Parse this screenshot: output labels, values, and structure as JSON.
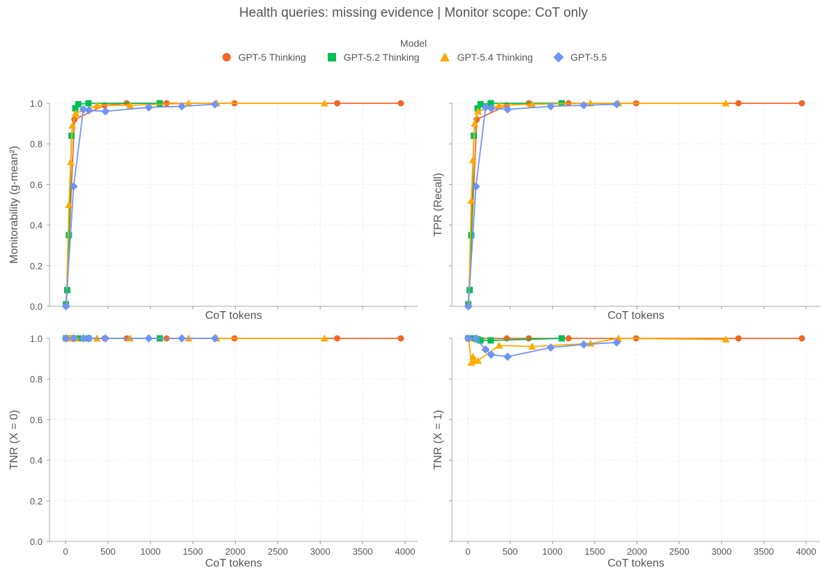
{
  "title": "Health queries: missing evidence | Monitor scope: CoT only",
  "legend_title": "Model",
  "chart_data": {
    "type": "line",
    "xlabel": "CoT tokens",
    "xlim": [
      -200,
      4150
    ],
    "ylim": [
      0,
      1.0
    ],
    "xticks": [
      0,
      500,
      1000,
      1500,
      2000,
      2500,
      3000,
      3500,
      4000
    ],
    "yticks": [
      "0.0",
      "0.2",
      "0.4",
      "0.6",
      "0.8",
      "1.0"
    ],
    "grid": true,
    "legend_placement": "top-center",
    "panels": [
      {
        "ylabel": "Monitorability (g-mean²)",
        "metric": "monit"
      },
      {
        "ylabel": "TPR (Recall)",
        "metric": "tpr"
      },
      {
        "ylabel": "TNR (X = 0)",
        "metric": "tnr0"
      },
      {
        "ylabel": "TNR (X = 1)",
        "metric": "tnr1"
      }
    ],
    "series": [
      {
        "name": "GPT-5 Thinking",
        "color": "#F26522",
        "marker": "circle",
        "x": [
          5,
          105,
          460,
          720,
          1190,
          1990,
          3200,
          3950
        ],
        "monit": [
          0.0,
          0.92,
          0.99,
          1.0,
          1.0,
          1.0,
          1.0,
          1.0
        ],
        "tpr": [
          0.0,
          0.92,
          0.99,
          1.0,
          1.0,
          1.0,
          1.0,
          1.0
        ],
        "tnr0": [
          1.0,
          1.0,
          1.0,
          1.0,
          1.0,
          1.0,
          1.0,
          1.0
        ],
        "tnr1": [
          1.0,
          1.0,
          1.0,
          1.0,
          1.0,
          1.0,
          1.0,
          1.0
        ]
      },
      {
        "name": "GPT-5.2 Thinking",
        "color": "#00BF55",
        "marker": "square",
        "x": [
          5,
          20,
          40,
          70,
          115,
          150,
          270,
          1110
        ],
        "monit": [
          0.01,
          0.08,
          0.35,
          0.84,
          0.975,
          0.995,
          1.0,
          1.0
        ],
        "tpr": [
          0.01,
          0.08,
          0.35,
          0.84,
          0.975,
          0.995,
          1.0,
          1.0
        ],
        "tnr0": [
          1.0,
          1.0,
          1.0,
          1.0,
          1.0,
          1.0,
          1.0,
          1.0
        ],
        "tnr1": [
          1.0,
          1.0,
          1.0,
          1.0,
          0.995,
          0.99,
          0.99,
          1.0
        ]
      },
      {
        "name": "GPT-5.4 Thinking",
        "color": "#FFAA00",
        "marker": "triangle",
        "x": [
          10,
          40,
          60,
          80,
          120,
          370,
          760,
          1450,
          1780,
          3050
        ],
        "monit": [
          0.01,
          0.5,
          0.71,
          0.89,
          0.95,
          0.99,
          0.99,
          1.0,
          1.0,
          1.0
        ],
        "tpr": [
          0.01,
          0.52,
          0.72,
          0.9,
          0.96,
          0.99,
          0.995,
          1.0,
          1.0,
          1.0
        ],
        "tnr0": [
          1.0,
          1.0,
          1.0,
          1.0,
          1.0,
          1.0,
          1.0,
          1.0,
          1.0,
          1.0
        ],
        "tnr1": [
          1.0,
          0.88,
          0.91,
          0.89,
          0.89,
          0.965,
          0.96,
          0.975,
          1.0,
          0.995
        ]
      },
      {
        "name": "GPT-5.5",
        "color": "#7094F5",
        "marker": "diamond",
        "x": [
          5,
          95,
          210,
          275,
          470,
          980,
          1370,
          1760
        ],
        "monit": [
          0.0,
          0.59,
          0.97,
          0.965,
          0.96,
          0.98,
          0.985,
          0.995
        ],
        "tpr": [
          0.0,
          0.59,
          0.98,
          0.975,
          0.97,
          0.985,
          0.99,
          0.995
        ],
        "tnr0": [
          1.0,
          1.0,
          1.0,
          1.0,
          1.0,
          1.0,
          1.0,
          1.0
        ],
        "tnr1": [
          1.0,
          1.0,
          0.945,
          0.92,
          0.91,
          0.955,
          0.97,
          0.98
        ]
      }
    ]
  }
}
